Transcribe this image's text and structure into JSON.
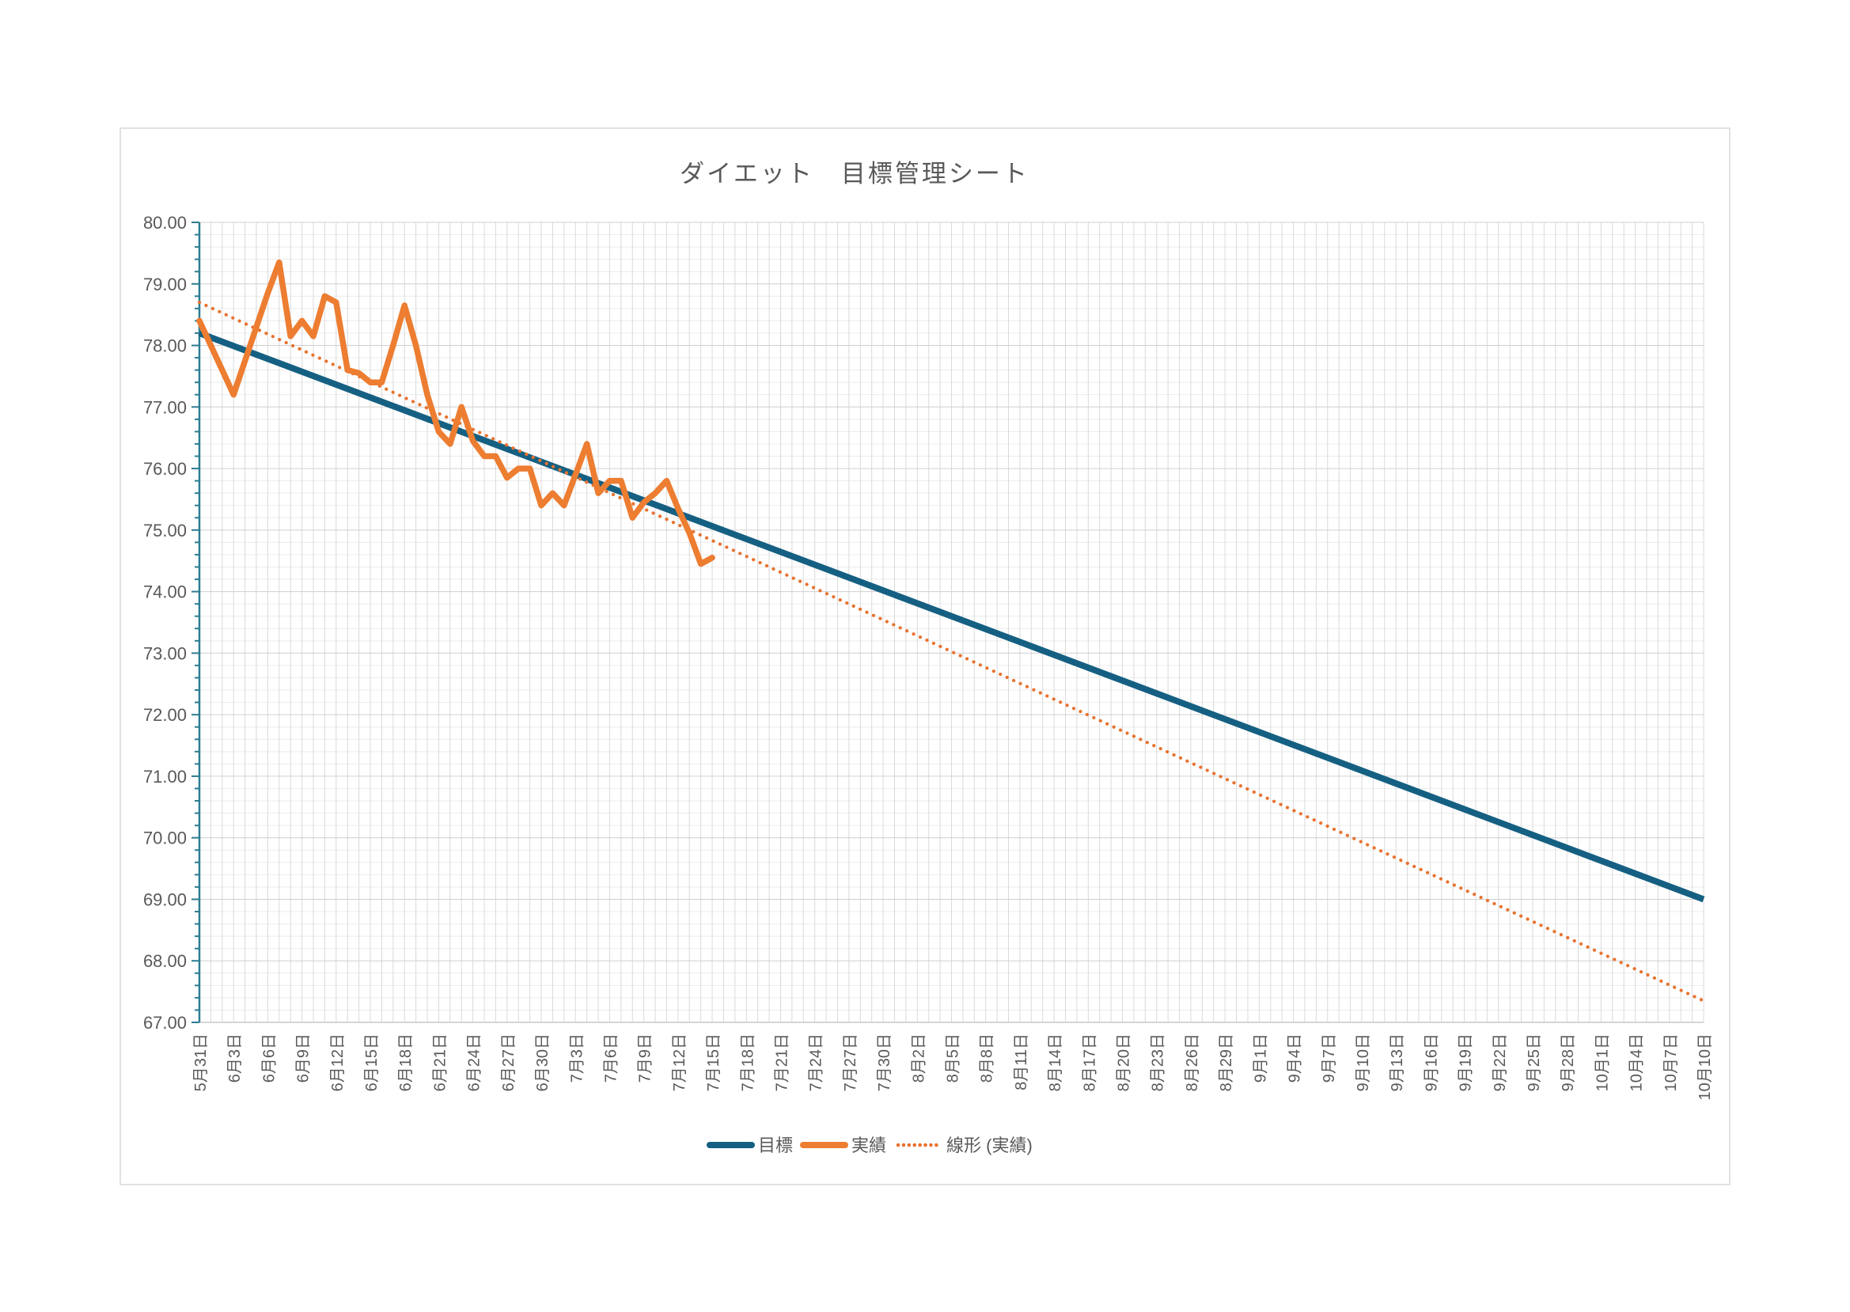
{
  "title": "ダイエット　目標管理シート",
  "colors": {
    "goal_line": "#156082",
    "actual_line": "#ED7D31",
    "trend_line": "#E8722E",
    "axis_teal": "#2D7D92",
    "bottom_axis": "#C8C8C8",
    "grid_vertical": "#DADADA",
    "grid_minor_h": "#ECECEC",
    "grid_major_h": "#D0D0D0",
    "text_gray": "#595959",
    "chart_border": "#D9D9D9",
    "background": "#FFFFFF"
  },
  "y_axis": {
    "min": 67,
    "max": 80,
    "major_step": 1,
    "minor_step": 0.2,
    "tick_labels": [
      "80.00",
      "79.00",
      "78.00",
      "77.00",
      "76.00",
      "75.00",
      "74.00",
      "73.00",
      "72.00",
      "71.00",
      "70.00",
      "69.00",
      "68.00",
      "67.00"
    ]
  },
  "x_axis": {
    "total_days": 132,
    "label_every_days": 3,
    "tick_labels": [
      "5月31日",
      "6月3日",
      "6月6日",
      "6月9日",
      "6月12日",
      "6月15日",
      "6月18日",
      "6月21日",
      "6月24日",
      "6月27日",
      "6月30日",
      "7月3日",
      "7月6日",
      "7月9日",
      "7月12日",
      "7月15日",
      "7月18日",
      "7月21日",
      "7月24日",
      "7月27日",
      "7月30日",
      "8月2日",
      "8月5日",
      "8月8日",
      "8月11日",
      "8月14日",
      "8月17日",
      "8月20日",
      "8月23日",
      "8月26日",
      "8月29日",
      "9月1日",
      "9月4日",
      "9月7日",
      "9月10日",
      "9月13日",
      "9月16日",
      "9月19日",
      "9月22日",
      "9月25日",
      "9月28日",
      "10月1日",
      "10月4日",
      "10月7日",
      "10月10日"
    ]
  },
  "legend": {
    "items": [
      {
        "label": "目標",
        "style": "solid",
        "color_key": "goal_line"
      },
      {
        "label": "実績",
        "style": "solid",
        "color_key": "actual_line"
      },
      {
        "label": "線形 (実績)",
        "style": "dotted",
        "color_key": "trend_line"
      }
    ]
  },
  "chart_data": {
    "type": "line",
    "title": "ダイエット　目標管理シート",
    "xlabel": "",
    "ylabel": "",
    "ylim": [
      67,
      80
    ],
    "grid": "major-and-minor",
    "legend_position": "bottom",
    "x_start": "5月31日",
    "x_end": "10月10日",
    "series": [
      {
        "name": "目標",
        "style": "solid-thick",
        "kind": "straight-line",
        "start": {
          "date": "5月31日",
          "day": 0,
          "value": 78.2
        },
        "end": {
          "date": "10月10日",
          "day": 132,
          "value": 69.0
        }
      },
      {
        "name": "実績",
        "style": "solid",
        "kind": "daily-measurements",
        "start_date": "5月31日",
        "end_date": "7月15日",
        "values": [
          78.4,
          78.0,
          77.6,
          77.2,
          77.75,
          78.3,
          78.85,
          79.35,
          78.15,
          78.4,
          78.15,
          78.8,
          78.7,
          77.6,
          77.55,
          77.4,
          77.4,
          78.0,
          78.65,
          78.0,
          77.2,
          76.6,
          76.4,
          77.0,
          76.45,
          76.2,
          76.2,
          75.85,
          76.0,
          76.0,
          75.4,
          75.6,
          75.4,
          75.9,
          76.4,
          75.6,
          75.8,
          75.8,
          75.2,
          75.45,
          75.6,
          75.8,
          75.35,
          74.95,
          74.45,
          74.55
        ]
      },
      {
        "name": "線形 (実績)",
        "style": "dotted",
        "kind": "linear-trendline",
        "start": {
          "date": "5月31日",
          "day": 0,
          "value": 78.7
        },
        "end": {
          "date": "10月10日",
          "day": 132,
          "value": 67.35
        }
      }
    ]
  }
}
